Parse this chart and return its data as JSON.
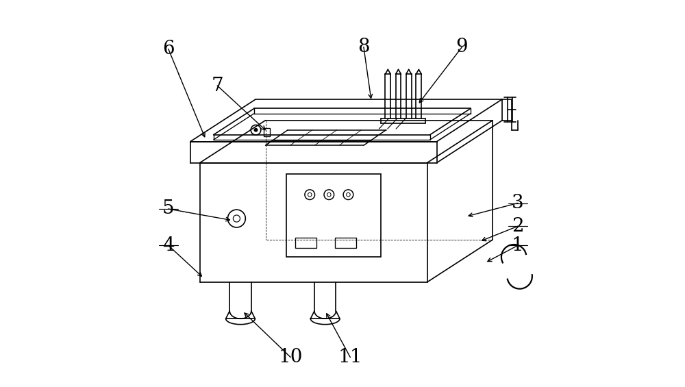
{
  "figure_width": 10.0,
  "figure_height": 5.65,
  "dpi": 100,
  "bg_color": "#ffffff",
  "line_color": "#000000",
  "line_width": 1.2,
  "label_fontsize": 20
}
